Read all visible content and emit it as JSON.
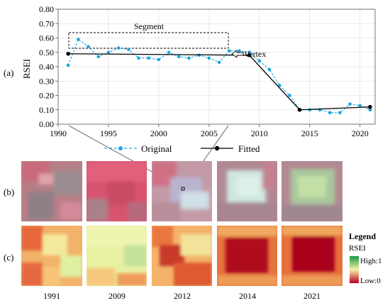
{
  "panel_labels": {
    "a": "(a)",
    "b": "(b)",
    "c": "(c)"
  },
  "chart_data": {
    "type": "line",
    "ylabel": "RSEI",
    "xlim": [
      1990,
      2021.5
    ],
    "ylim": [
      0.0,
      0.8
    ],
    "x_ticks": [
      1990,
      1995,
      2000,
      2005,
      2010,
      2015,
      2020
    ],
    "y_ticks": [
      "0.00",
      "0.10",
      "0.20",
      "0.30",
      "0.40",
      "0.50",
      "0.60",
      "0.70",
      "0.80"
    ],
    "grid": true,
    "legend_position": "bottom",
    "series": [
      {
        "name": "Original",
        "color": "#1aa6dd",
        "style": "dashed-dots",
        "x": [
          1991,
          1992,
          1993,
          1994,
          1995,
          1996,
          1997,
          1998,
          1999,
          2000,
          2001,
          2002,
          2003,
          2004,
          2005,
          2006,
          2007,
          2008,
          2009,
          2010,
          2011,
          2012,
          2013,
          2014,
          2015,
          2016,
          2017,
          2018,
          2019,
          2020,
          2021
        ],
        "y": [
          0.41,
          0.59,
          0.54,
          0.47,
          0.5,
          0.53,
          0.52,
          0.46,
          0.46,
          0.45,
          0.5,
          0.47,
          0.46,
          0.48,
          0.46,
          0.43,
          0.51,
          0.51,
          0.5,
          0.44,
          0.38,
          0.27,
          0.2,
          0.1,
          0.1,
          0.1,
          0.08,
          0.08,
          0.14,
          0.13,
          0.1
        ]
      },
      {
        "name": "Fitted",
        "color": "#000000",
        "style": "solid-markers",
        "x": [
          1991,
          2009,
          2014,
          2021
        ],
        "y": [
          0.49,
          0.48,
          0.1,
          0.12
        ]
      }
    ],
    "annotations": {
      "segment": "Segment",
      "vertex": "Vertex"
    }
  },
  "images": {
    "years": [
      "1991",
      "2009",
      "2012",
      "2014",
      "2021"
    ]
  },
  "legend": {
    "title": "Legend",
    "subtitle": "RSEI",
    "high": "High:1",
    "low": "Low:0",
    "colors": {
      "high": "#1a9641",
      "mid": "#f7f3a8",
      "low": "#b8001f"
    }
  }
}
